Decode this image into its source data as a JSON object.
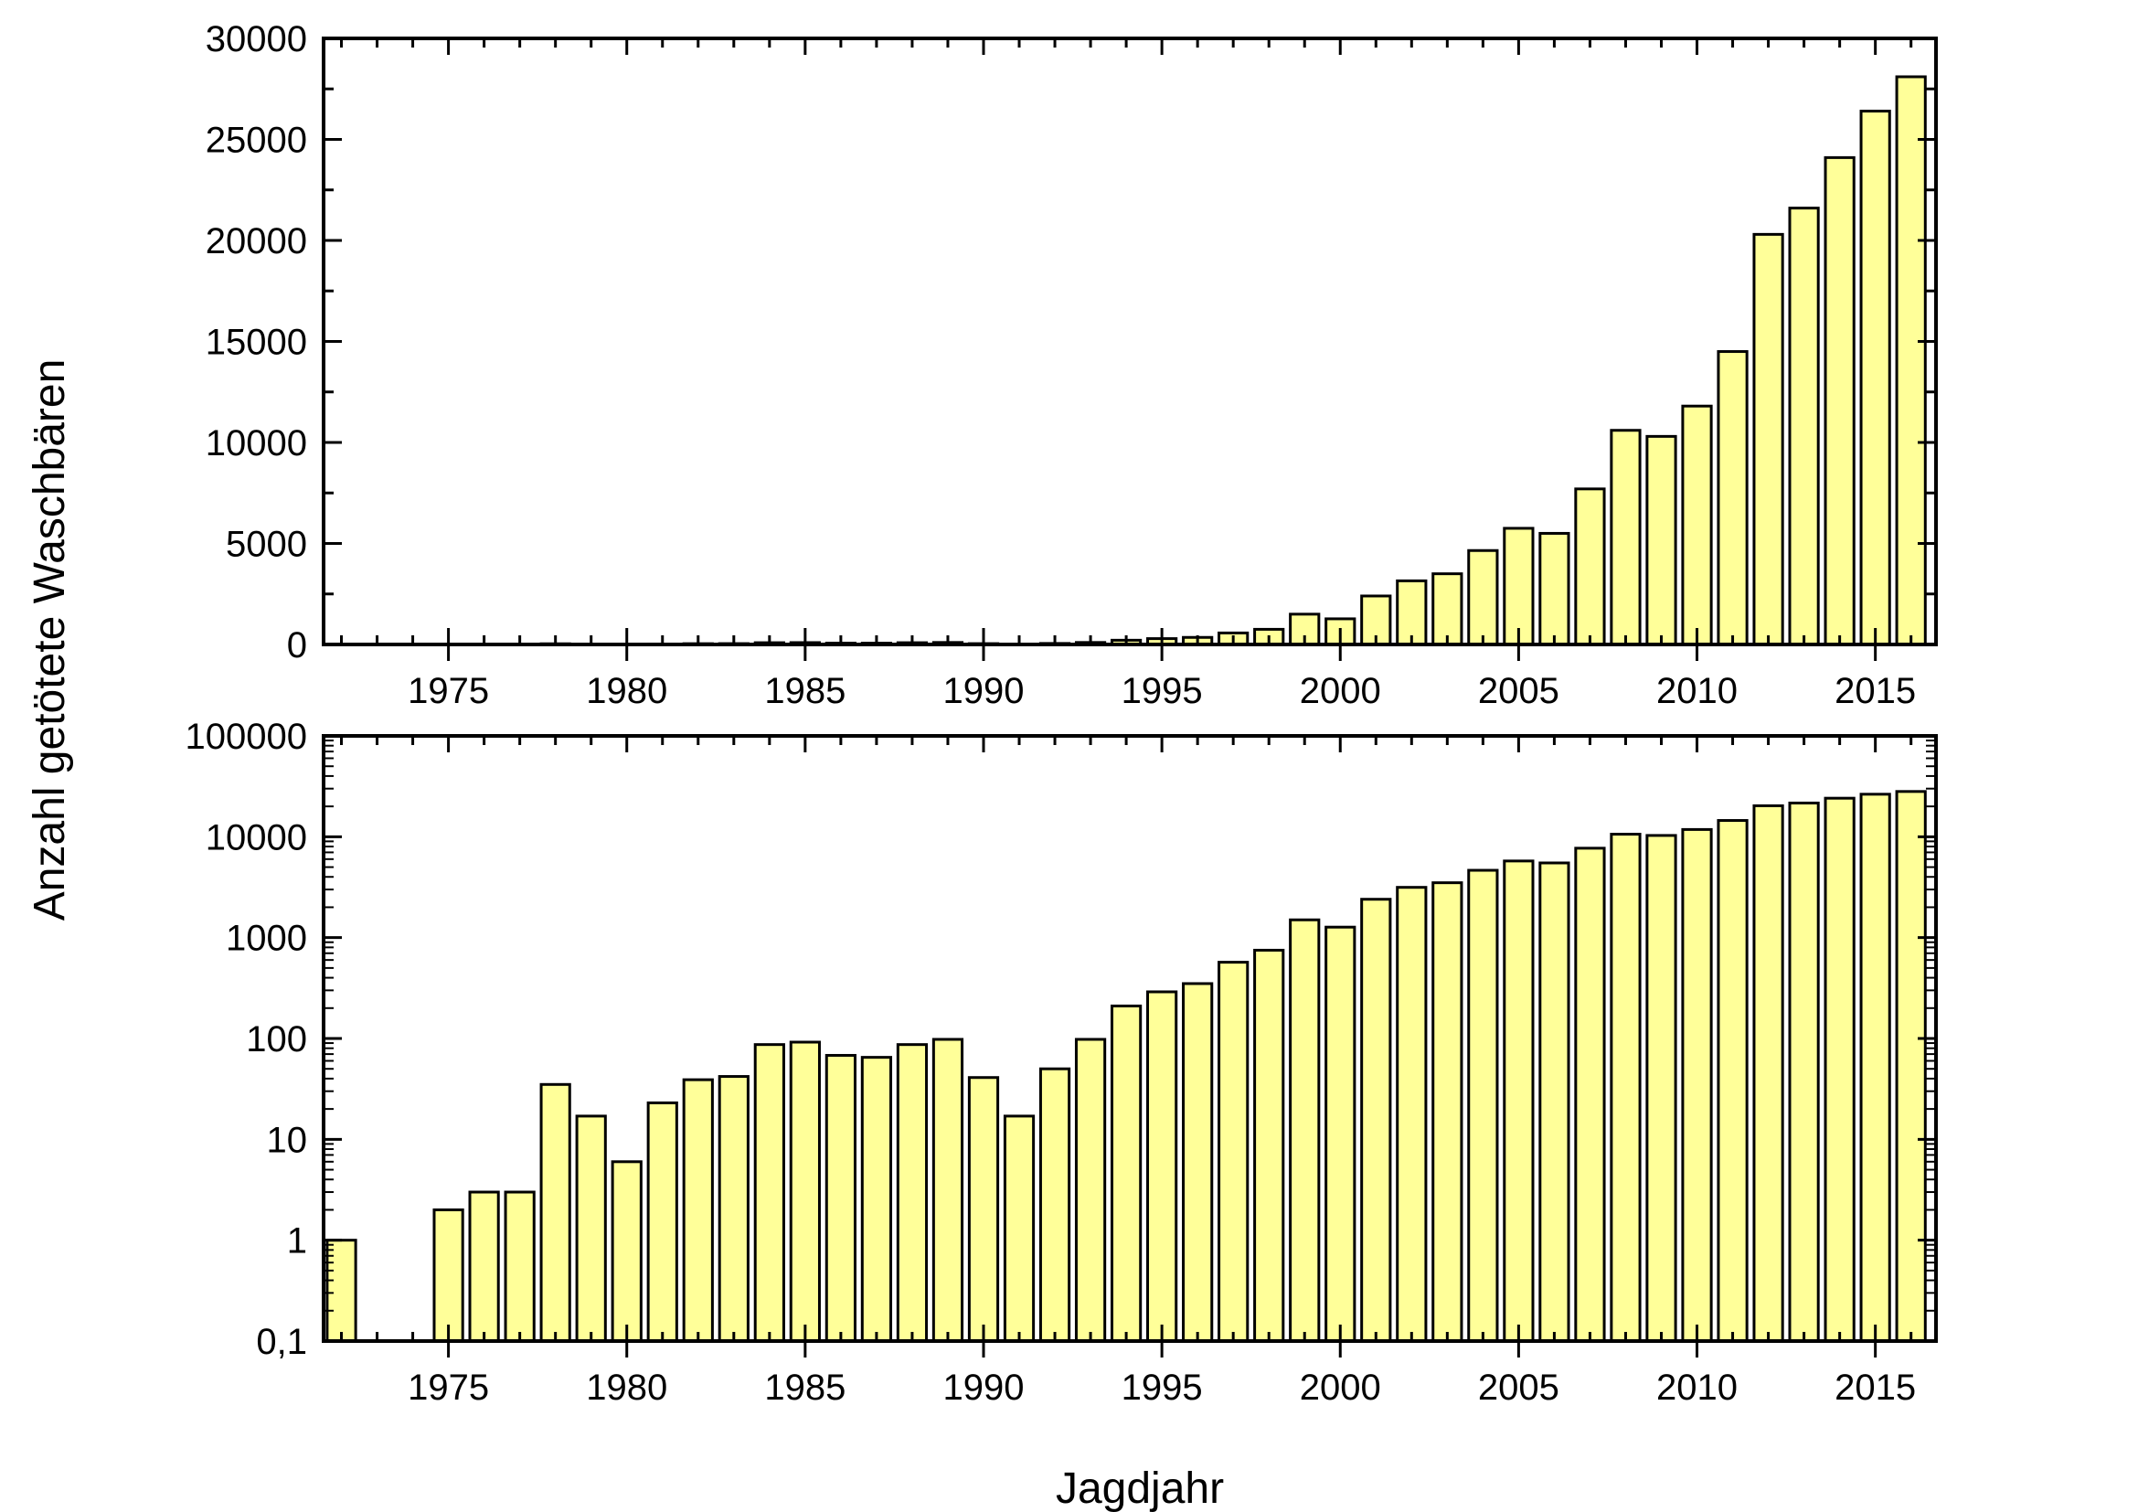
{
  "figure": {
    "ylabel": "Anzahl getötete Waschbären",
    "xlabel": "Jagdjahr",
    "bar_color": "#ffff99",
    "bar_edge_color": "#000000"
  },
  "chart_data": [
    {
      "type": "bar",
      "scale": "linear",
      "xlim": [
        1971.5,
        2016.7
      ],
      "ylim": [
        0,
        30000
      ],
      "x_ticks": [
        "1975",
        "1980",
        "1985",
        "1990",
        "1995",
        "2000",
        "2005",
        "2010",
        "2015"
      ],
      "y_ticks": [
        "0",
        "5000",
        "10000",
        "15000",
        "20000",
        "25000",
        "30000"
      ],
      "grid": false,
      "x": [
        1972,
        1973,
        1974,
        1975,
        1976,
        1977,
        1978,
        1979,
        1980,
        1981,
        1982,
        1983,
        1984,
        1985,
        1986,
        1987,
        1988,
        1989,
        1990,
        1991,
        1992,
        1993,
        1994,
        1995,
        1996,
        1997,
        1998,
        1999,
        2000,
        2001,
        2002,
        2003,
        2004,
        2005,
        2006,
        2007,
        2008,
        2009,
        2010,
        2011,
        2012,
        2013,
        2014,
        2015,
        2016
      ],
      "values": [
        1,
        0,
        0,
        2,
        3,
        3,
        35,
        17,
        6,
        23,
        39,
        42,
        87,
        92,
        68,
        65,
        87,
        98,
        41,
        17,
        50,
        98,
        210,
        290,
        350,
        570,
        750,
        1500,
        1270,
        2400,
        3150,
        3500,
        4650,
        5750,
        5500,
        7700,
        10600,
        10300,
        11800,
        14500,
        20300,
        21600,
        24100,
        26400,
        28100
      ]
    },
    {
      "type": "bar",
      "scale": "log",
      "xlim": [
        1971.5,
        2016.7
      ],
      "ylim": [
        0.1,
        100000
      ],
      "x_ticks": [
        "1975",
        "1980",
        "1985",
        "1990",
        "1995",
        "2000",
        "2005",
        "2010",
        "2015"
      ],
      "y_ticks": [
        "0,1",
        "1",
        "10",
        "100",
        "1000",
        "10000",
        "100000"
      ],
      "grid": false,
      "x": [
        1972,
        1973,
        1974,
        1975,
        1976,
        1977,
        1978,
        1979,
        1980,
        1981,
        1982,
        1983,
        1984,
        1985,
        1986,
        1987,
        1988,
        1989,
        1990,
        1991,
        1992,
        1993,
        1994,
        1995,
        1996,
        1997,
        1998,
        1999,
        2000,
        2001,
        2002,
        2003,
        2004,
        2005,
        2006,
        2007,
        2008,
        2009,
        2010,
        2011,
        2012,
        2013,
        2014,
        2015,
        2016
      ],
      "values": [
        1,
        0,
        0,
        2,
        3,
        3,
        35,
        17,
        6,
        23,
        39,
        42,
        87,
        92,
        68,
        65,
        87,
        98,
        41,
        17,
        50,
        98,
        210,
        290,
        350,
        570,
        750,
        1500,
        1270,
        2400,
        3150,
        3500,
        4650,
        5750,
        5500,
        7700,
        10600,
        10300,
        11800,
        14500,
        20300,
        21600,
        24100,
        26400,
        28100
      ]
    }
  ]
}
